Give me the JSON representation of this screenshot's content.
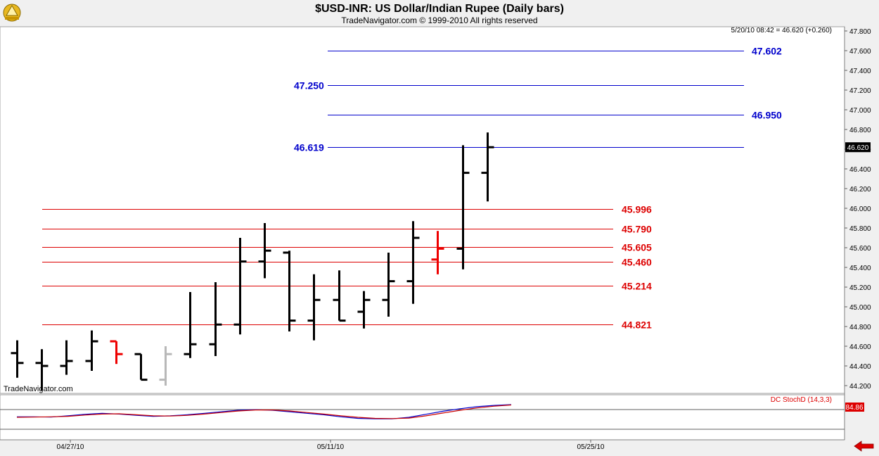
{
  "header": {
    "title": "$USD-INR:  US Dollar/Indian Rupee  (Daily bars)",
    "subtitle": "TradeNavigator.com © 1999-2010 All rights reserved",
    "quote": "5/20/10 08:42 = 46.620 (+0.260)"
  },
  "watermark": "TradeNavigator.com",
  "colors": {
    "blue_levels": "#0000cc",
    "red_levels": "#dd0000",
    "bars": "#000000",
    "down_bar": "#ee0000",
    "gray_bar": "#b8b8b8",
    "stoch_k": "#0000cc",
    "stoch_d": "#cc0000"
  },
  "chart_data": [
    {
      "type": "ohlc",
      "title": "$USD-INR:  US Dollar/Indian Rupee  (Daily bars)",
      "ylim": [
        44.2,
        47.8
      ],
      "y_ticks": [
        "47.800",
        "47.600",
        "47.400",
        "47.200",
        "47.000",
        "46.800",
        "46.600",
        "46.400",
        "46.200",
        "46.000",
        "45.800",
        "45.600",
        "45.400",
        "45.200",
        "45.000",
        "44.800",
        "44.600",
        "44.400",
        "44.200"
      ],
      "x_ticks": [
        "04/27/10",
        "05/11/10",
        "05/25/10"
      ],
      "last_price_label": "46.620",
      "bars": [
        {
          "open": 44.53,
          "high": 44.66,
          "low": 44.28,
          "close": 44.43
        },
        {
          "open": 44.43,
          "high": 44.57,
          "low": 44.15,
          "close": 44.4
        },
        {
          "open": 44.4,
          "high": 44.66,
          "low": 44.31,
          "close": 44.45
        },
        {
          "open": 44.45,
          "high": 44.76,
          "low": 44.35,
          "close": 44.65
        },
        {
          "open": 44.65,
          "high": 44.65,
          "low": 44.42,
          "close": 44.52,
          "color": "down"
        },
        {
          "open": 44.52,
          "high": 44.52,
          "low": 44.26,
          "close": 44.26
        },
        {
          "open": 44.26,
          "high": 44.6,
          "low": 44.2,
          "close": 44.52,
          "color": "gray"
        },
        {
          "open": 44.52,
          "high": 45.15,
          "low": 44.48,
          "close": 44.62
        },
        {
          "open": 44.62,
          "high": 45.25,
          "low": 44.5,
          "close": 44.82
        },
        {
          "open": 44.82,
          "high": 45.7,
          "low": 44.72,
          "close": 45.46
        },
        {
          "open": 45.46,
          "high": 45.85,
          "low": 45.29,
          "close": 45.57
        },
        {
          "open": 45.55,
          "high": 45.57,
          "low": 44.75,
          "close": 44.86
        },
        {
          "open": 44.86,
          "high": 45.33,
          "low": 44.66,
          "close": 45.07
        },
        {
          "open": 45.07,
          "high": 45.37,
          "low": 44.86,
          "close": 44.86
        },
        {
          "open": 44.95,
          "high": 45.16,
          "low": 44.78,
          "close": 45.07
        },
        {
          "open": 45.07,
          "high": 45.55,
          "low": 44.9,
          "close": 45.26
        },
        {
          "open": 45.26,
          "high": 45.87,
          "low": 45.03,
          "close": 45.7
        },
        {
          "open": 45.48,
          "high": 45.77,
          "low": 45.33,
          "close": 45.59,
          "color": "down"
        },
        {
          "open": 45.59,
          "high": 46.64,
          "low": 45.38,
          "close": 46.36
        },
        {
          "open": 46.36,
          "high": 46.77,
          "low": 46.07,
          "close": 46.62
        }
      ],
      "levels": [
        {
          "value": 47.602,
          "label": "47.602",
          "color": "blue",
          "label_side": "right"
        },
        {
          "value": 47.25,
          "label": "47.250",
          "color": "blue",
          "label_side": "left"
        },
        {
          "value": 46.95,
          "label": "46.950",
          "color": "blue",
          "label_side": "right"
        },
        {
          "value": 46.619,
          "label": "46.619",
          "color": "blue",
          "label_side": "left"
        },
        {
          "value": 45.996,
          "label": "45.996",
          "color": "red",
          "label_side": "right"
        },
        {
          "value": 45.79,
          "label": "45.790",
          "color": "red",
          "label_side": "right"
        },
        {
          "value": 45.605,
          "label": "45.605",
          "color": "red",
          "label_side": "right"
        },
        {
          "value": 45.46,
          "label": "45.460",
          "color": "red",
          "label_side": "right"
        },
        {
          "value": 45.214,
          "label": "45.214",
          "color": "red",
          "label_side": "right"
        },
        {
          "value": 44.821,
          "label": "44.821",
          "color": "red",
          "label_side": "right"
        }
      ]
    },
    {
      "type": "line",
      "title": "DC StochD (14,3,3)",
      "ylim": [
        0,
        100
      ],
      "last_value_label": "84.86",
      "series": [
        {
          "values": [
            38,
            38,
            37,
            42,
            48,
            52,
            49,
            44,
            40,
            42,
            46,
            52,
            58,
            64,
            66,
            64,
            58,
            52,
            46,
            38,
            32,
            30,
            30,
            36,
            48,
            60,
            70,
            78,
            83,
            86
          ]
        },
        {
          "values": [
            36,
            37,
            38,
            40,
            45,
            49,
            50,
            46,
            42,
            41,
            44,
            49,
            55,
            61,
            65,
            65,
            61,
            55,
            49,
            42,
            36,
            32,
            31,
            33,
            42,
            53,
            64,
            73,
            80,
            84.86
          ]
        }
      ]
    }
  ]
}
